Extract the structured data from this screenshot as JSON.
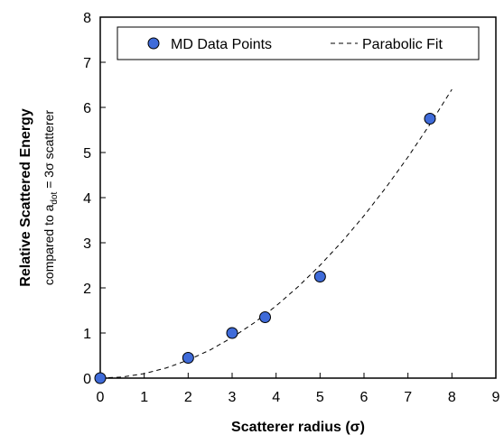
{
  "chart_data": {
    "type": "scatter",
    "title": "",
    "xlabel": "Scatterer radius (σ)",
    "ylabel": "Relative Scattered Energy",
    "ylabel_sub": {
      "prefix": "compared to a",
      "subscript": "dot",
      "middle": " = 3",
      "symbol": "σ",
      "suffix": " scatterer"
    },
    "xlim": [
      0,
      9
    ],
    "ylim": [
      0,
      8
    ],
    "x_ticks": [
      "0",
      "1",
      "2",
      "3",
      "4",
      "5",
      "6",
      "7",
      "8",
      "9"
    ],
    "y_ticks": [
      "0",
      "1",
      "2",
      "3",
      "4",
      "5",
      "6",
      "7",
      "8"
    ],
    "grid": false,
    "legend_position": "top",
    "series": [
      {
        "name": "MD Data Points",
        "kind": "markers",
        "marker": "circle",
        "color": "#3f6bd9",
        "x": [
          0,
          2,
          3,
          3.75,
          5,
          7.5
        ],
        "y": [
          0,
          0.45,
          1.0,
          1.35,
          2.25,
          5.75
        ]
      },
      {
        "name": "Parabolic Fit",
        "kind": "dashed-line",
        "color": "#000000",
        "x": [
          0,
          0.5,
          1,
          1.5,
          2,
          2.5,
          3,
          3.5,
          4,
          4.5,
          5,
          5.5,
          6,
          6.5,
          7,
          7.5,
          8
        ],
        "y": [
          0,
          0.025,
          0.1,
          0.225,
          0.4,
          0.625,
          0.9,
          1.225,
          1.6,
          2.025,
          2.5,
          3.025,
          3.6,
          4.225,
          4.9,
          5.625,
          6.4
        ]
      }
    ]
  }
}
